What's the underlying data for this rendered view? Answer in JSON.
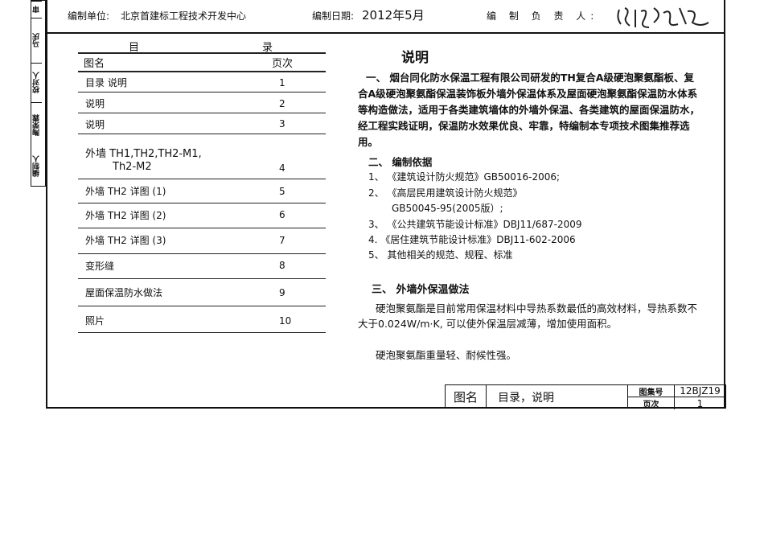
{
  "side_labels": [
    "审",
    "马庆",
    "校对人",
    "陶荣霖",
    "编制人"
  ],
  "header": {
    "unit_label": "编制单位:",
    "unit": "北京首建标工程技术开发中心",
    "date_label": "编制日期:",
    "date": "2012年5月",
    "responsible_label": "编 制 负 责 人:",
    "signature": "陶荣霖签名"
  },
  "toc": {
    "title_left": "目",
    "title_right": "录",
    "col_name": "图名",
    "col_page": "页次",
    "rows": [
      {
        "name": "目录 说明",
        "page": "1"
      },
      {
        "name": "说明",
        "page": "2"
      },
      {
        "name": "说明",
        "page": "3"
      },
      {
        "name": "外墙 TH1,TH2,TH2-M1,",
        "name2": "Th2-M2",
        "page": "4"
      },
      {
        "name": "外墙  TH2 详图 (1)",
        "page": "5"
      },
      {
        "name": "外墙  TH2 详图 (2)",
        "page": "6"
      },
      {
        "name": "外墙  TH2 详图 (3)",
        "page": "7"
      },
      {
        "name": "变形缝",
        "page": "8"
      },
      {
        "name": "屋面保温防水做法",
        "page": "9"
      },
      {
        "name": "照片",
        "page": "10"
      }
    ]
  },
  "notes": {
    "title": "说明",
    "s1": "一、 烟台同化防水保温工程有限公司研发的TH复合A级硬泡聚氨酯板、复合A级硬泡聚氨酯保温装饰板外墙外保温体系及屋面硬泡聚氨酯保温防水体系等构造做法，适用于各类建筑墙体的外墙外保温、各类建筑的屋面保温防水，经工程实践证明，保温防水效果优良、牢靠，特编制本专项技术图集推荐选用。",
    "s2_title": "二、 编制依据",
    "s2_items": [
      "1、 《建筑设计防火规范》GB50016-2006;",
      "2、 《高层民用建筑设计防火规范》",
      "GB50045-95(2005版）;",
      "3、 《公共建筑节能设计标准》DBJ11/687-2009",
      "4.  《居住建筑节能设计标准》DBJ11-602-2006",
      "5、  其他相关的规范、规程、标准"
    ],
    "s3_title": "三、 外墙外保温做法",
    "s3_p1": "硬泡聚氨酯是目前常用保温材料中导热系数最低的高效材料，导热系数不大于0.024W/m·K, 可以使外保温层减薄，增加使用面积。",
    "s3_p2": "硬泡聚氨酯重量轻、耐候性强。"
  },
  "title_block": {
    "name_label": "图名",
    "name": "目录，说明",
    "atlas_label": "图集号",
    "atlas": "12BJZ19",
    "page_label": "页次",
    "page": "1"
  }
}
